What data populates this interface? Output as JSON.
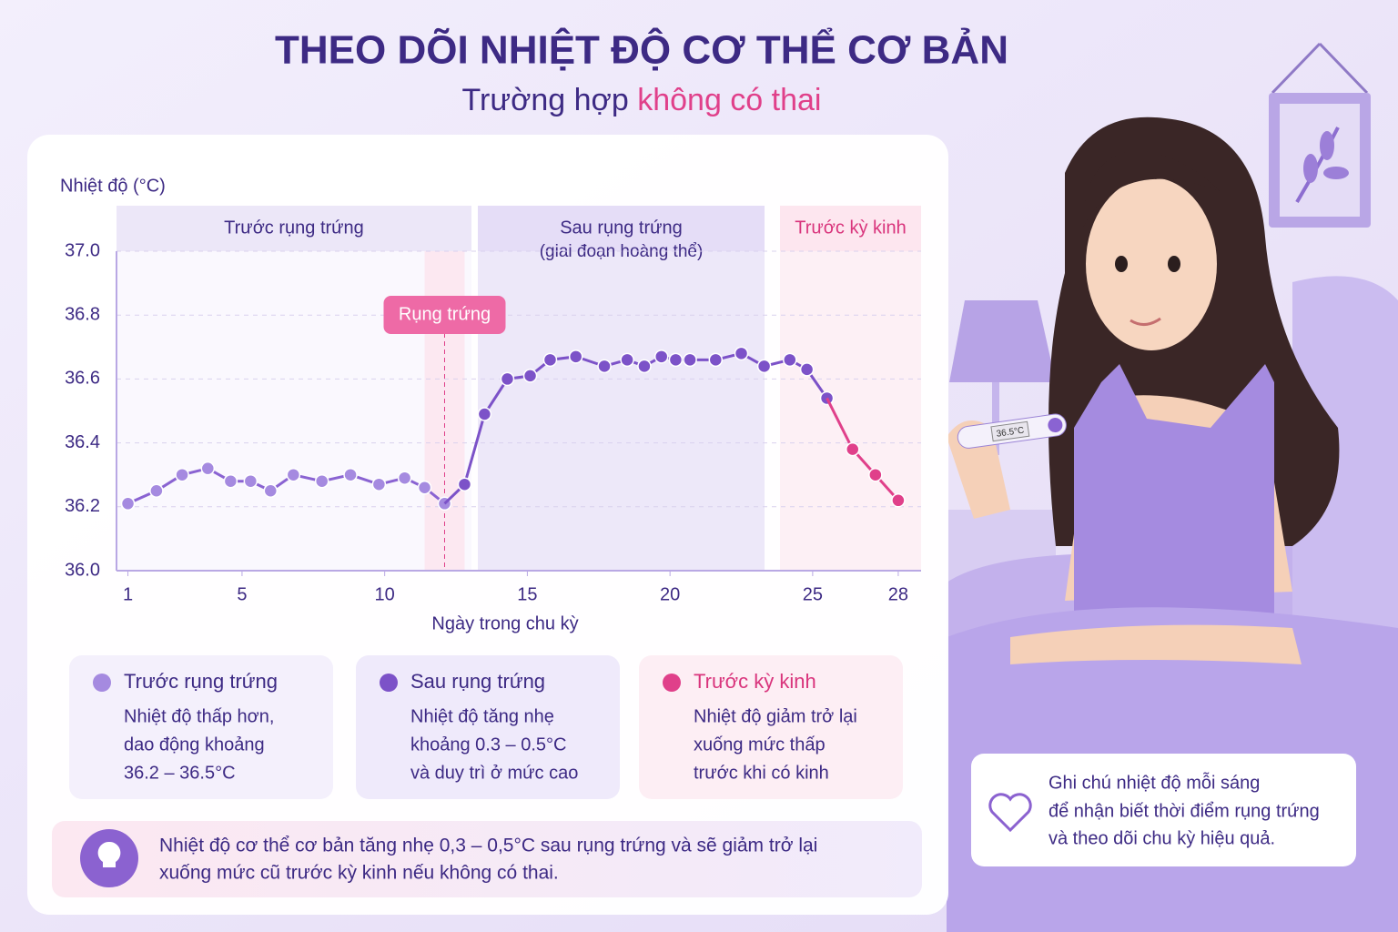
{
  "header": {
    "title": "THEO DÕI NHIỆT ĐỘ CƠ THỂ CƠ BẢN",
    "subtitle": "Trường hợp",
    "subtitle_highlight": "không có thai"
  },
  "chart_data": {
    "type": "line",
    "y_label": "Nhiệt độ (°C)",
    "x_label": "Ngày trong chu kỳ",
    "phases": [
      {
        "label": "Trước rụng trứng"
      },
      {
        "label": "Sau rụng trứng",
        "sublabel": "(giai đoạn hoàng thể)"
      },
      {
        "label": "Trước kỳ kinh"
      }
    ],
    "annotation": {
      "text": "Rụng trứng",
      "x": 12.1
    },
    "xlim": [
      0.6,
      28.8
    ],
    "xticks": [
      1,
      5,
      10,
      15,
      20,
      25,
      28
    ],
    "ylim": [
      36.0,
      37.0
    ],
    "yticks": [
      {
        "value": 36.0,
        "label": "36.0"
      },
      36.2,
      36.4,
      36.6,
      36.8,
      {
        "value": 37.0,
        "label": "37.0"
      }
    ],
    "grid": true,
    "series": [
      {
        "name": "Trước rụng trứng",
        "color": "#a58ae0",
        "line_color": "#8a63d2",
        "card_color": "#f4f0fc",
        "description": [
          "Nhiệt độ thấp hơn,",
          "dao động khoảng",
          "36.2 – 36.5°C"
        ],
        "x": [
          1.0,
          2.0,
          2.9,
          3.8,
          4.6,
          5.3,
          6.0,
          6.8,
          7.8,
          8.8,
          9.8,
          10.7,
          11.4,
          12.1
        ],
        "values": [
          36.21,
          36.25,
          36.3,
          36.32,
          36.28,
          36.28,
          36.25,
          36.3,
          36.28,
          36.3,
          36.27,
          36.29,
          36.26,
          36.21
        ]
      },
      {
        "name": "Sau rụng trứng",
        "color": "#7c52c8",
        "line_color": "#7c52c8",
        "card_color": "#efeafb",
        "description": [
          "Nhiệt độ tăng nhẹ",
          "khoảng 0.3 – 0.5°C",
          "và duy trì ở mức cao"
        ],
        "x": [
          12.8,
          13.5,
          14.3,
          15.1,
          15.8,
          16.7,
          17.7,
          18.5,
          19.1,
          19.7,
          20.2,
          20.7,
          21.6,
          22.5,
          23.3,
          24.2,
          24.8,
          25.5
        ],
        "values": [
          36.27,
          36.49,
          36.6,
          36.61,
          36.66,
          36.67,
          36.64,
          36.66,
          36.64,
          36.67,
          36.66,
          36.66,
          36.66,
          36.68,
          36.64,
          36.66,
          36.63,
          36.54
        ]
      },
      {
        "name": "Trước kỳ kinh",
        "color": "#e0408a",
        "line_color": "#e0408a",
        "card_color": "#fdeef4",
        "description": [
          "Nhiệt độ giảm trở lại",
          "xuống mức thấp",
          "trước khi có kinh"
        ],
        "x": [
          26.4,
          27.2,
          28.0
        ],
        "values": [
          36.38,
          36.3,
          36.22
        ]
      }
    ]
  },
  "tip": {
    "lines": [
      "Nhiệt độ cơ thể cơ bản tăng nhẹ 0,3 – 0,5°C sau rụng trứng và sẽ giảm trở lại",
      "xuống mức cũ trước kỳ kinh nếu không có thai."
    ]
  },
  "note": {
    "lines": [
      "Ghi chú nhiệt độ mỗi sáng",
      "để nhận biết thời điểm rụng trứng",
      "và theo dõi chu kỳ hiệu quả."
    ]
  },
  "thermometer": {
    "reading": "36.5°C"
  }
}
